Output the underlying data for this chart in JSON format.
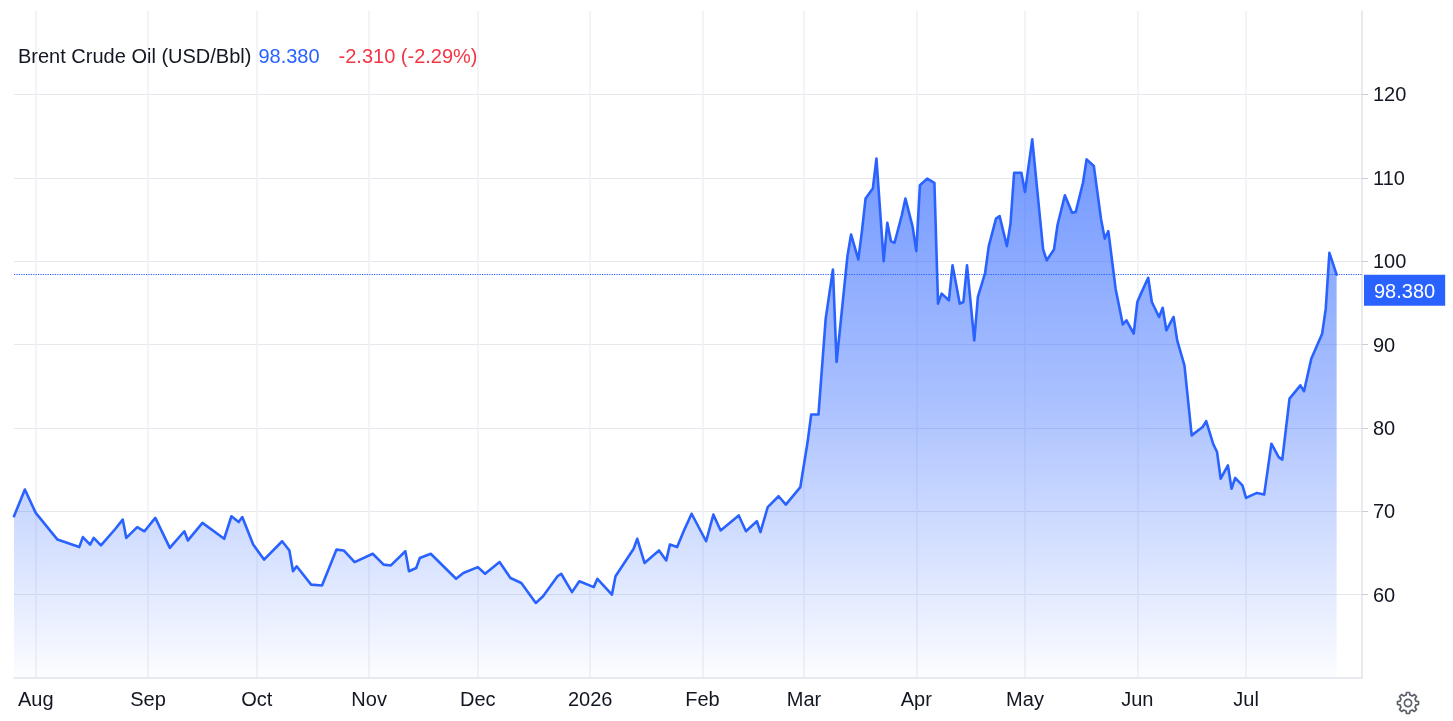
{
  "chart_data": {
    "type": "area",
    "title": "Brent Crude Oil (USD/Bbl)",
    "annotations": [
      "98.380",
      "-2.310 (-2.29%)"
    ],
    "x": [
      "2025-07-26",
      "2025-07-29",
      "2025-08-01",
      "2025-08-07",
      "2025-08-13",
      "2025-08-14",
      "2025-08-16",
      "2025-08-17",
      "2025-08-19",
      "2025-08-23",
      "2025-08-25",
      "2025-08-26",
      "2025-08-29",
      "2025-08-31",
      "2025-09-03",
      "2025-09-07",
      "2025-09-11",
      "2025-09-12",
      "2025-09-16",
      "2025-09-22",
      "2025-09-24",
      "2025-09-26",
      "2025-09-27",
      "2025-09-30",
      "2025-10-03",
      "2025-10-08",
      "2025-10-10",
      "2025-10-11",
      "2025-10-12",
      "2025-10-16",
      "2025-10-19",
      "2025-10-23",
      "2025-10-25",
      "2025-10-28",
      "2025-11-02",
      "2025-11-05",
      "2025-11-07",
      "2025-11-11",
      "2025-11-12",
      "2025-11-14",
      "2025-11-15",
      "2025-11-18",
      "2025-11-25",
      "2025-11-27",
      "2025-12-01",
      "2025-12-03",
      "2025-12-07",
      "2025-12-10",
      "2025-12-13",
      "2025-12-17",
      "2025-12-19",
      "2025-12-23",
      "2025-12-24",
      "2025-12-27",
      "2025-12-29",
      "2026-01-02",
      "2026-01-03",
      "2026-01-07",
      "2026-01-08",
      "2026-01-13",
      "2026-01-14",
      "2026-01-16",
      "2026-01-20",
      "2026-01-22",
      "2026-01-23",
      "2026-01-25",
      "2026-01-27",
      "2026-01-29",
      "2026-02-02",
      "2026-02-04",
      "2026-02-06",
      "2026-02-11",
      "2026-02-13",
      "2026-02-16",
      "2026-02-17",
      "2026-02-19",
      "2026-02-22",
      "2026-02-24",
      "2026-02-28",
      "2026-03-02",
      "2026-03-03",
      "2026-03-05",
      "2026-03-07",
      "2026-03-09",
      "2026-03-10",
      "2026-03-11",
      "2026-03-13",
      "2026-03-14",
      "2026-03-16",
      "2026-03-17",
      "2026-03-18",
      "2026-03-20",
      "2026-03-21",
      "2026-03-23",
      "2026-03-24",
      "2026-03-25",
      "2026-03-26",
      "2026-03-28",
      "2026-03-29",
      "2026-03-31",
      "2026-04-01",
      "2026-04-02",
      "2026-04-04",
      "2026-04-06",
      "2026-04-07",
      "2026-04-08",
      "2026-04-10",
      "2026-04-11",
      "2026-04-13",
      "2026-04-14",
      "2026-04-15",
      "2026-04-17",
      "2026-04-18",
      "2026-04-20",
      "2026-04-21",
      "2026-04-23",
      "2026-04-24",
      "2026-04-26",
      "2026-04-27",
      "2026-04-28",
      "2026-04-30",
      "2026-05-01",
      "2026-05-03",
      "2026-05-04",
      "2026-05-06",
      "2026-05-07",
      "2026-05-09",
      "2026-05-10",
      "2026-05-12",
      "2026-05-14",
      "2026-05-15",
      "2026-05-17",
      "2026-05-18",
      "2026-05-20",
      "2026-05-22",
      "2026-05-23",
      "2026-05-24",
      "2026-05-26",
      "2026-05-28",
      "2026-05-29",
      "2026-05-31",
      "2026-06-01",
      "2026-06-02",
      "2026-06-04",
      "2026-06-05",
      "2026-06-07",
      "2026-06-08",
      "2026-06-09",
      "2026-06-11",
      "2026-06-12",
      "2026-06-14",
      "2026-06-16",
      "2026-06-19",
      "2026-06-20",
      "2026-06-22",
      "2026-06-23",
      "2026-06-24",
      "2026-06-26",
      "2026-06-27",
      "2026-06-28",
      "2026-06-30",
      "2026-07-01",
      "2026-07-04",
      "2026-07-06",
      "2026-07-08",
      "2026-07-10",
      "2026-07-11",
      "2026-07-13",
      "2026-07-16",
      "2026-07-17",
      "2026-07-19",
      "2026-07-22",
      "2026-07-23",
      "2026-07-24",
      "2026-07-26"
    ],
    "values": [
      69.4,
      72.6,
      69.8,
      66.6,
      65.7,
      66.9,
      66.0,
      66.8,
      65.9,
      67.9,
      69.0,
      66.8,
      68.1,
      67.6,
      69.2,
      65.6,
      67.6,
      66.5,
      68.6,
      66.7,
      69.4,
      68.7,
      69.3,
      66.0,
      64.2,
      66.4,
      65.3,
      62.8,
      63.4,
      61.2,
      61.1,
      65.4,
      65.3,
      63.9,
      64.9,
      63.6,
      63.5,
      65.2,
      62.8,
      63.2,
      64.4,
      64.9,
      61.9,
      62.6,
      63.3,
      62.5,
      63.9,
      62.0,
      61.4,
      59.0,
      59.8,
      62.2,
      62.5,
      60.3,
      61.6,
      60.9,
      61.9,
      60.0,
      62.2,
      65.5,
      66.7,
      63.8,
      65.3,
      64.1,
      66.0,
      65.7,
      67.8,
      69.7,
      66.4,
      69.6,
      67.7,
      69.5,
      67.6,
      68.8,
      67.5,
      70.5,
      71.8,
      70.8,
      72.9,
      78.3,
      81.6,
      81.6,
      93.1,
      99.0,
      87.9,
      92.1,
      100.6,
      103.2,
      100.2,
      103.6,
      107.5,
      108.7,
      112.3,
      100.0,
      104.6,
      102.4,
      102.2,
      105.5,
      107.5,
      104.1,
      101.2,
      109.1,
      109.9,
      109.4,
      94.9,
      96.1,
      95.3,
      99.5,
      94.9,
      95.1,
      99.5,
      90.5,
      95.7,
      98.6,
      101.8,
      105.1,
      105.4,
      101.8,
      104.5,
      110.6,
      110.6,
      108.3,
      114.6,
      110.2,
      101.4,
      100.1,
      101.4,
      104.4,
      107.9,
      105.8,
      105.9,
      109.4,
      112.2,
      111.4,
      105.0,
      102.7,
      103.6,
      96.7,
      92.4,
      92.9,
      91.3,
      95.1,
      96.1,
      98.0,
      95.1,
      93.3,
      94.4,
      91.7,
      93.3,
      90.5,
      87.5,
      79.1,
      80.1,
      80.8,
      78.0,
      77.1,
      73.9,
      75.5,
      72.7,
      74.0,
      73.1,
      71.6,
      72.2,
      72.0,
      78.1,
      76.5,
      76.2,
      83.5,
      85.1,
      84.4,
      88.3,
      91.3,
      94.3,
      101.0,
      98.38
    ],
    "color": "#2962ff",
    "xlim": [
      "2025-07-26",
      "2026-08-02"
    ],
    "xticks": [
      {
        "value": "2025-08-01",
        "label": "Aug"
      },
      {
        "value": "2025-09-01",
        "label": "Sep"
      },
      {
        "value": "2025-10-01",
        "label": "Oct"
      },
      {
        "value": "2025-11-01",
        "label": "Nov"
      },
      {
        "value": "2025-12-01",
        "label": "Dec"
      },
      {
        "value": "2026-01-01",
        "label": "2026"
      },
      {
        "value": "2026-02-01",
        "label": "Feb"
      },
      {
        "value": "2026-03-01",
        "label": "Mar"
      },
      {
        "value": "2026-04-01",
        "label": "Apr"
      },
      {
        "value": "2026-05-01",
        "label": "May"
      },
      {
        "value": "2026-06-01",
        "label": "Jun"
      },
      {
        "value": "2026-07-01",
        "label": "Jul"
      }
    ],
    "ylim": [
      50,
      130
    ],
    "yticks": [
      60,
      70,
      80,
      90,
      100,
      110,
      120
    ],
    "grid": true,
    "ref_lines": [
      {
        "axis": "y",
        "value": 98.38,
        "label": "98.380",
        "color": "#2962ff",
        "line_style": "dotted"
      }
    ]
  }
}
